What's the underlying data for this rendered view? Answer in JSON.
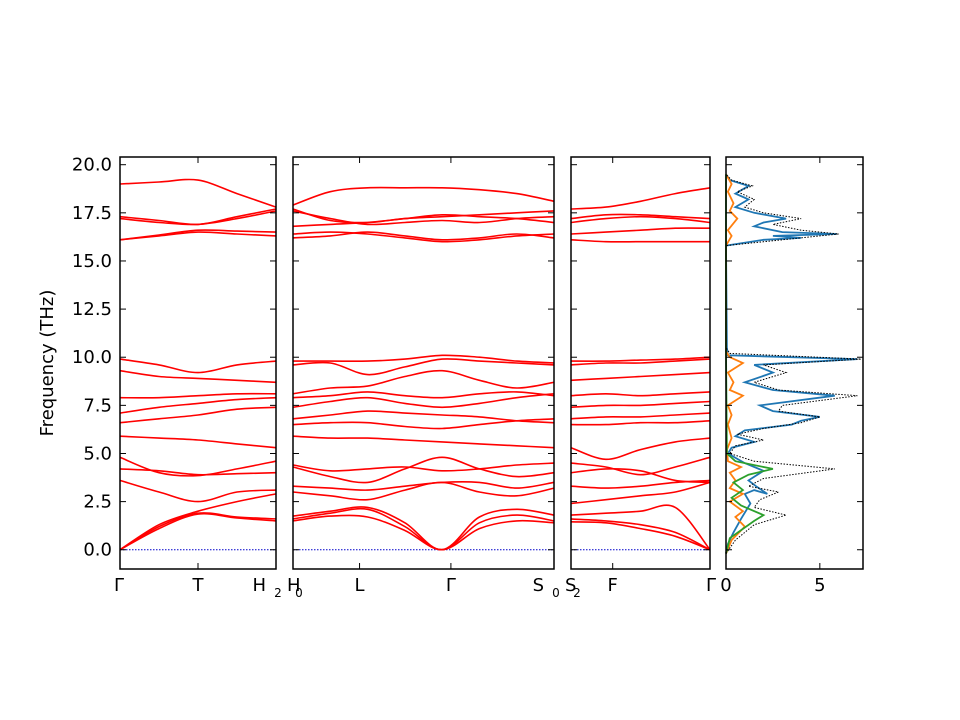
{
  "chart_data": {
    "type": "line",
    "ylabel": "Frequency (THz)",
    "ylim": [
      -1.0,
      20.4
    ],
    "y_ticks": [
      "0.0",
      "2.5",
      "5.0",
      "7.5",
      "10.0",
      "12.5",
      "15.0",
      "17.5",
      "20.0"
    ],
    "y_tick_values": [
      0,
      2.5,
      5,
      7.5,
      10,
      12.5,
      15,
      17.5,
      20
    ],
    "band_color": "#ff0000",
    "zero_line_color": "#0000cc",
    "panels": [
      {
        "id": "G-T-H2",
        "x_ticks": [
          {
            "t": 0,
            "label": "Γ"
          },
          {
            "t": 0.5,
            "label": "T"
          },
          {
            "t": 1,
            "label": "H",
            "sub": "2"
          }
        ],
        "bands": [
          [
            0,
            1.3,
            2.0,
            2.5,
            2.9
          ],
          [
            0,
            1.2,
            1.9,
            1.7,
            1.6
          ],
          [
            0,
            1.1,
            1.85,
            1.65,
            1.5
          ],
          [
            3.6,
            3.0,
            2.5,
            3.0,
            3.1
          ],
          [
            4.2,
            4.1,
            3.9,
            3.95,
            4.0
          ],
          [
            4.8,
            4.0,
            3.85,
            4.2,
            4.6
          ],
          [
            5.9,
            5.8,
            5.7,
            5.5,
            5.3
          ],
          [
            6.6,
            6.8,
            7.0,
            7.3,
            7.4
          ],
          [
            7.1,
            7.4,
            7.6,
            7.8,
            7.9
          ],
          [
            7.9,
            7.9,
            8.0,
            8.1,
            8.1
          ],
          [
            9.3,
            9.0,
            8.9,
            8.8,
            8.7
          ],
          [
            9.9,
            9.6,
            9.2,
            9.6,
            9.8
          ],
          [
            16.1,
            16.3,
            16.5,
            16.4,
            16.3
          ],
          [
            16.1,
            16.35,
            16.6,
            16.55,
            16.5
          ],
          [
            17.3,
            17.1,
            16.9,
            17.3,
            17.7
          ],
          [
            17.2,
            17.0,
            16.9,
            17.2,
            17.6
          ],
          [
            19.0,
            19.1,
            19.2,
            18.5,
            17.8
          ]
        ]
      },
      {
        "id": "H0-L-G-S0",
        "x_ticks": [
          {
            "t": 0,
            "label": "H",
            "sub": "0"
          },
          {
            "t": 0.255,
            "label": "L"
          },
          {
            "t": 0.605,
            "label": "Γ"
          },
          {
            "t": 1,
            "label": "S",
            "sub": "0"
          }
        ],
        "bands": [
          [
            1.6,
            1.9,
            2.1,
            1.2,
            0,
            1.4,
            1.8,
            1.5
          ],
          [
            1.5,
            1.75,
            1.7,
            1.0,
            0,
            1.1,
            1.5,
            1.4
          ],
          [
            1.75,
            2.0,
            2.2,
            1.4,
            0,
            1.7,
            2.1,
            1.8
          ],
          [
            3.0,
            2.8,
            2.6,
            3.1,
            3.5,
            3.0,
            2.8,
            3.2
          ],
          [
            3.3,
            3.2,
            3.1,
            3.3,
            3.5,
            3.5,
            3.2,
            3.5
          ],
          [
            4.4,
            4.1,
            4.2,
            4.3,
            4.1,
            4.2,
            4.4,
            4.5
          ],
          [
            4.3,
            3.8,
            3.5,
            4.2,
            4.8,
            4.2,
            3.8,
            4.0
          ],
          [
            5.9,
            5.8,
            5.8,
            5.7,
            5.6,
            5.5,
            5.4,
            5.3
          ],
          [
            6.5,
            6.6,
            6.6,
            6.4,
            6.3,
            6.5,
            6.7,
            6.8
          ],
          [
            6.8,
            7.0,
            7.2,
            7.1,
            7.0,
            6.9,
            6.7,
            6.6
          ],
          [
            7.4,
            7.7,
            7.9,
            7.6,
            7.4,
            7.6,
            7.9,
            8.1
          ],
          [
            7.9,
            8.0,
            8.2,
            8.0,
            7.9,
            8.1,
            8.2,
            8.0
          ],
          [
            8.1,
            8.4,
            8.5,
            9.0,
            9.3,
            8.8,
            8.4,
            8.7
          ],
          [
            9.6,
            9.7,
            9.1,
            9.5,
            9.9,
            9.8,
            9.7,
            9.6
          ],
          [
            9.8,
            9.8,
            9.8,
            9.9,
            10.1,
            10.0,
            9.8,
            9.7
          ],
          [
            16.4,
            16.5,
            16.4,
            16.2,
            16.0,
            16.1,
            16.3,
            16.4
          ],
          [
            16.2,
            16.3,
            16.5,
            16.3,
            16.1,
            16.2,
            16.4,
            16.2
          ],
          [
            17.7,
            17.1,
            17.0,
            17.2,
            17.3,
            17.4,
            17.5,
            17.6
          ],
          [
            17.6,
            17.2,
            16.9,
            17.0,
            17.1,
            17.0,
            17.2,
            17.3
          ],
          [
            16.8,
            16.9,
            17.0,
            17.2,
            17.4,
            17.3,
            17.2,
            17.0
          ],
          [
            17.9,
            18.6,
            18.8,
            18.8,
            18.8,
            18.7,
            18.5,
            18.1
          ]
        ]
      },
      {
        "id": "S2-F-G",
        "x_ticks": [
          {
            "t": 0,
            "label": "S",
            "sub": "2"
          },
          {
            "t": 0.3,
            "label": "F"
          },
          {
            "t": 1,
            "label": "Γ"
          }
        ],
        "bands": [
          [
            1.45,
            1.4,
            1.1,
            0.7,
            0
          ],
          [
            1.6,
            1.5,
            1.3,
            0.9,
            0
          ],
          [
            1.8,
            1.9,
            2.0,
            2.2,
            0
          ],
          [
            2.4,
            2.6,
            2.8,
            3.0,
            3.5
          ],
          [
            3.3,
            3.2,
            3.3,
            3.5,
            3.6
          ],
          [
            4.0,
            4.2,
            4.1,
            3.6,
            3.5
          ],
          [
            4.5,
            4.3,
            3.9,
            4.3,
            4.8
          ],
          [
            5.3,
            4.7,
            5.2,
            5.6,
            5.8
          ],
          [
            6.5,
            6.5,
            6.6,
            6.6,
            6.7
          ],
          [
            6.8,
            6.9,
            6.9,
            7.0,
            7.1
          ],
          [
            7.4,
            7.5,
            7.5,
            7.6,
            7.7
          ],
          [
            8.0,
            8.1,
            8.0,
            8.1,
            8.2
          ],
          [
            8.8,
            8.9,
            9.0,
            9.1,
            9.2
          ],
          [
            9.6,
            9.7,
            9.7,
            9.8,
            9.9
          ],
          [
            9.8,
            9.8,
            9.85,
            9.9,
            10.0
          ],
          [
            16.1,
            16.0,
            16.0,
            16.0,
            16.0
          ],
          [
            16.4,
            16.5,
            16.6,
            16.7,
            16.7
          ],
          [
            17.0,
            17.2,
            17.3,
            17.2,
            17.0
          ],
          [
            17.2,
            17.4,
            17.4,
            17.3,
            17.2
          ],
          [
            17.7,
            17.8,
            18.1,
            18.5,
            18.8
          ]
        ]
      }
    ],
    "dos": {
      "xlim": [
        0,
        7.3
      ],
      "x_ticks": [
        "0",
        "5"
      ],
      "x_tick_values": [
        0,
        5
      ],
      "total_color": "#000000",
      "series": [
        {
          "color": "#1f77b4",
          "points": [
            [
              0,
              -0.2
            ],
            [
              0.1,
              0.3
            ],
            [
              0.4,
              0.9
            ],
            [
              0.8,
              1.6
            ],
            [
              1.3,
              2.4
            ],
            [
              1.0,
              2.9
            ],
            [
              1.5,
              3.1
            ],
            [
              2.2,
              2.9
            ],
            [
              1.6,
              3.3
            ],
            [
              1.2,
              3.6
            ],
            [
              2.0,
              4.1
            ],
            [
              1.0,
              4.5
            ],
            [
              0.1,
              5.0
            ],
            [
              0.3,
              5.3
            ],
            [
              1.5,
              5.6
            ],
            [
              0.5,
              5.9
            ],
            [
              1.0,
              6.2
            ],
            [
              3.5,
              6.5
            ],
            [
              4.0,
              6.7
            ],
            [
              5.0,
              6.9
            ],
            [
              2.5,
              7.2
            ],
            [
              1.8,
              7.5
            ],
            [
              5.8,
              8.0
            ],
            [
              2.5,
              8.3
            ],
            [
              1.0,
              8.7
            ],
            [
              2.5,
              9.2
            ],
            [
              1.5,
              9.6
            ],
            [
              7.0,
              9.9
            ],
            [
              0.1,
              10.1
            ],
            [
              0.05,
              10.5
            ],
            [
              0,
              15.8
            ],
            [
              2.0,
              16.1
            ],
            [
              4.0,
              16.2
            ],
            [
              2.5,
              16.3
            ],
            [
              5.9,
              16.4
            ],
            [
              3.0,
              16.5
            ],
            [
              1.5,
              16.8
            ],
            [
              2.0,
              17.0
            ],
            [
              3.2,
              17.2
            ],
            [
              1.5,
              17.5
            ],
            [
              0.5,
              17.8
            ],
            [
              1.2,
              18.2
            ],
            [
              0.5,
              18.5
            ],
            [
              1.2,
              18.9
            ],
            [
              0.2,
              19.2
            ],
            [
              0,
              19.5
            ]
          ]
        },
        {
          "color": "#ff7f0e",
          "points": [
            [
              0,
              -0.2
            ],
            [
              0.3,
              0.5
            ],
            [
              1.0,
              1.2
            ],
            [
              0.5,
              1.7
            ],
            [
              0.9,
              2.0
            ],
            [
              0.2,
              2.5
            ],
            [
              0.9,
              2.9
            ],
            [
              0.2,
              3.2
            ],
            [
              0.5,
              3.6
            ],
            [
              0.2,
              4.0
            ],
            [
              0.8,
              4.3
            ],
            [
              0.1,
              4.6
            ],
            [
              0.05,
              5.2
            ],
            [
              0.3,
              5.8
            ],
            [
              0.1,
              6.5
            ],
            [
              0.3,
              7.0
            ],
            [
              0.1,
              7.5
            ],
            [
              0.9,
              8.0
            ],
            [
              0.2,
              8.3
            ],
            [
              0.4,
              8.7
            ],
            [
              0.1,
              9.2
            ],
            [
              0.9,
              9.7
            ],
            [
              0.2,
              10.0
            ],
            [
              0,
              10.3
            ],
            [
              0,
              15.8
            ],
            [
              0.3,
              16.3
            ],
            [
              0.1,
              16.6
            ],
            [
              0.6,
              17.2
            ],
            [
              0.2,
              17.6
            ],
            [
              0.4,
              18.0
            ],
            [
              0.1,
              18.6
            ],
            [
              0.3,
              19.0
            ],
            [
              0,
              19.5
            ]
          ]
        },
        {
          "color": "#2ca02c",
          "points": [
            [
              0,
              -0.2
            ],
            [
              0.2,
              0.6
            ],
            [
              1.5,
              1.5
            ],
            [
              2.0,
              1.8
            ],
            [
              0.8,
              2.3
            ],
            [
              0.3,
              2.7
            ],
            [
              0.9,
              3.1
            ],
            [
              0.4,
              3.5
            ],
            [
              1.2,
              3.9
            ],
            [
              2.5,
              4.2
            ],
            [
              0.5,
              4.6
            ],
            [
              0.05,
              5.0
            ],
            [
              0,
              10.3
            ],
            [
              0,
              19.5
            ]
          ]
        },
        {
          "color": "#000000",
          "dotted": true,
          "points": [
            [
              0,
              -0.2
            ],
            [
              0.5,
              0.5
            ],
            [
              1.5,
              1.3
            ],
            [
              3.2,
              1.8
            ],
            [
              1.5,
              2.2
            ],
            [
              1.8,
              2.6
            ],
            [
              2.8,
              3.0
            ],
            [
              1.2,
              3.3
            ],
            [
              2.0,
              3.7
            ],
            [
              5.8,
              4.2
            ],
            [
              1.5,
              4.6
            ],
            [
              0.2,
              5.0
            ],
            [
              0.5,
              5.4
            ],
            [
              2.0,
              5.7
            ],
            [
              0.6,
              6.0
            ],
            [
              2.0,
              6.3
            ],
            [
              4.0,
              6.6
            ],
            [
              5.0,
              6.9
            ],
            [
              2.8,
              7.2
            ],
            [
              3.0,
              7.5
            ],
            [
              7.0,
              8.0
            ],
            [
              2.8,
              8.3
            ],
            [
              1.5,
              8.7
            ],
            [
              3.2,
              9.2
            ],
            [
              2.0,
              9.6
            ],
            [
              7.2,
              9.9
            ],
            [
              0.2,
              10.2
            ],
            [
              0,
              10.5
            ],
            [
              0,
              15.8
            ],
            [
              3.0,
              16.1
            ],
            [
              5.0,
              16.3
            ],
            [
              6.0,
              16.4
            ],
            [
              4.0,
              16.6
            ],
            [
              2.5,
              16.9
            ],
            [
              4.0,
              17.2
            ],
            [
              2.0,
              17.5
            ],
            [
              1.0,
              17.8
            ],
            [
              1.5,
              18.2
            ],
            [
              0.6,
              18.6
            ],
            [
              1.4,
              18.9
            ],
            [
              0.3,
              19.2
            ],
            [
              0,
              19.5
            ]
          ]
        }
      ]
    }
  }
}
